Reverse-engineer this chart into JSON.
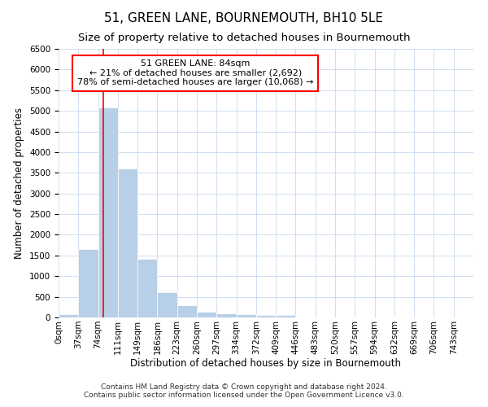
{
  "title": "51, GREEN LANE, BOURNEMOUTH, BH10 5LE",
  "subtitle": "Size of property relative to detached houses in Bournemouth",
  "xlabel": "Distribution of detached houses by size in Bournemouth",
  "ylabel": "Number of detached properties",
  "footer_line1": "Contains HM Land Registry data © Crown copyright and database right 2024.",
  "footer_line2": "Contains public sector information licensed under the Open Government Licence v3.0.",
  "annotation_title": "51 GREEN LANE: 84sqm",
  "annotation_line1": "← 21% of detached houses are smaller (2,692)",
  "annotation_line2": "78% of semi-detached houses are larger (10,068) →",
  "bar_labels": [
    "0sqm",
    "37sqm",
    "74sqm",
    "111sqm",
    "149sqm",
    "186sqm",
    "223sqm",
    "260sqm",
    "297sqm",
    "334sqm",
    "372sqm",
    "409sqm",
    "446sqm",
    "483sqm",
    "520sqm",
    "557sqm",
    "594sqm",
    "632sqm",
    "669sqm",
    "706sqm",
    "743sqm"
  ],
  "bar_values": [
    70,
    1650,
    5080,
    3600,
    1420,
    620,
    290,
    140,
    100,
    70,
    50,
    55,
    0,
    0,
    0,
    0,
    0,
    0,
    0,
    0,
    0
  ],
  "bar_color": "#b8cfe8",
  "bar_edge_color": "white",
  "red_line_x": 84,
  "bin_width": 37,
  "ylim": [
    0,
    6500
  ],
  "yticks": [
    0,
    500,
    1000,
    1500,
    2000,
    2500,
    3000,
    3500,
    4000,
    4500,
    5000,
    5500,
    6000,
    6500
  ],
  "grid_color": "#c8d8ee",
  "bg_color": "#ffffff",
  "plot_bg_color": "#ffffff",
  "annotation_box_color": "white",
  "annotation_box_edge": "red",
  "red_line_color": "red",
  "title_fontsize": 11,
  "subtitle_fontsize": 9.5,
  "axis_label_fontsize": 8.5,
  "tick_fontsize": 7.5,
  "annotation_fontsize": 8,
  "footer_fontsize": 6.5
}
